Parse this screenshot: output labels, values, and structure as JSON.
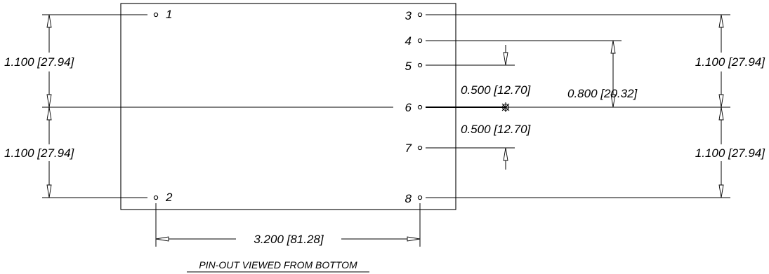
{
  "pins": [
    {
      "number": "1"
    },
    {
      "number": "2"
    },
    {
      "number": "3"
    },
    {
      "number": "4"
    },
    {
      "number": "5"
    },
    {
      "number": "6"
    },
    {
      "number": "7"
    },
    {
      "number": "8"
    }
  ],
  "dimensions": {
    "left_upper": "1.100 [27.94]",
    "left_lower": "1.100 [27.94]",
    "right_upper": "1.100 [27.94]",
    "right_lower": "1.100 [27.94]",
    "pin_spacing_upper": "0.500 [12.70]",
    "pin_spacing_lower": "0.500 [12.70]",
    "pin4_offset": "0.800 [20.32]",
    "width": "3.200 [81.28]"
  },
  "caption": "PIN-OUT VIEWED FROM BOTTOM",
  "icons": {
    "center_mark": "center-mark-icon"
  }
}
